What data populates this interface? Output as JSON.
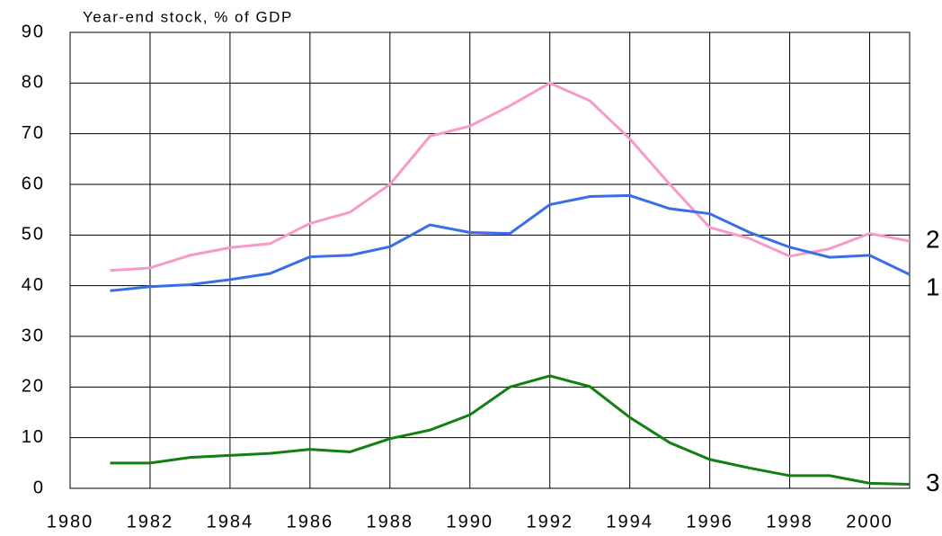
{
  "chart_data": {
    "type": "line",
    "title": "Year-end stock, % of GDP",
    "x": [
      1981,
      1982,
      1983,
      1984,
      1985,
      1986,
      1987,
      1988,
      1989,
      1990,
      1991,
      1992,
      1993,
      1994,
      1995,
      1996,
      1997,
      1998,
      1999,
      2000,
      2001
    ],
    "series": [
      {
        "name": "2",
        "color": "#f79ac8",
        "values": [
          43,
          43.5,
          46,
          47.5,
          48.3,
          52.3,
          54.5,
          60,
          69.5,
          71.5,
          75.5,
          80,
          76.5,
          69,
          60,
          51.5,
          49.3,
          45.8,
          47.3,
          50.3,
          48.8
        ]
      },
      {
        "name": "1",
        "color": "#3a6ee8",
        "values": [
          39,
          39.8,
          40.2,
          41.2,
          42.4,
          45.7,
          46,
          47.7,
          52,
          50.5,
          50.3,
          56,
          57.6,
          57.8,
          55.2,
          54.2,
          50.5,
          47.6,
          45.6,
          46,
          42.2
        ]
      },
      {
        "name": "3",
        "color": "#118011",
        "values": [
          5,
          5,
          6.1,
          6.5,
          6.9,
          7.7,
          7.2,
          9.8,
          11.5,
          14.5,
          20,
          22.2,
          20.1,
          14,
          9,
          5.7,
          4,
          2.5,
          2.5,
          1,
          0.8
        ]
      }
    ],
    "xlim": [
      1980,
      2001
    ],
    "xticks": [
      1980,
      1982,
      1984,
      1986,
      1988,
      1990,
      1992,
      1994,
      1996,
      1998,
      2000
    ],
    "ylim": [
      0,
      90
    ],
    "yticks": [
      0,
      10,
      20,
      30,
      40,
      50,
      60,
      70,
      80,
      90
    ],
    "grid": true
  }
}
